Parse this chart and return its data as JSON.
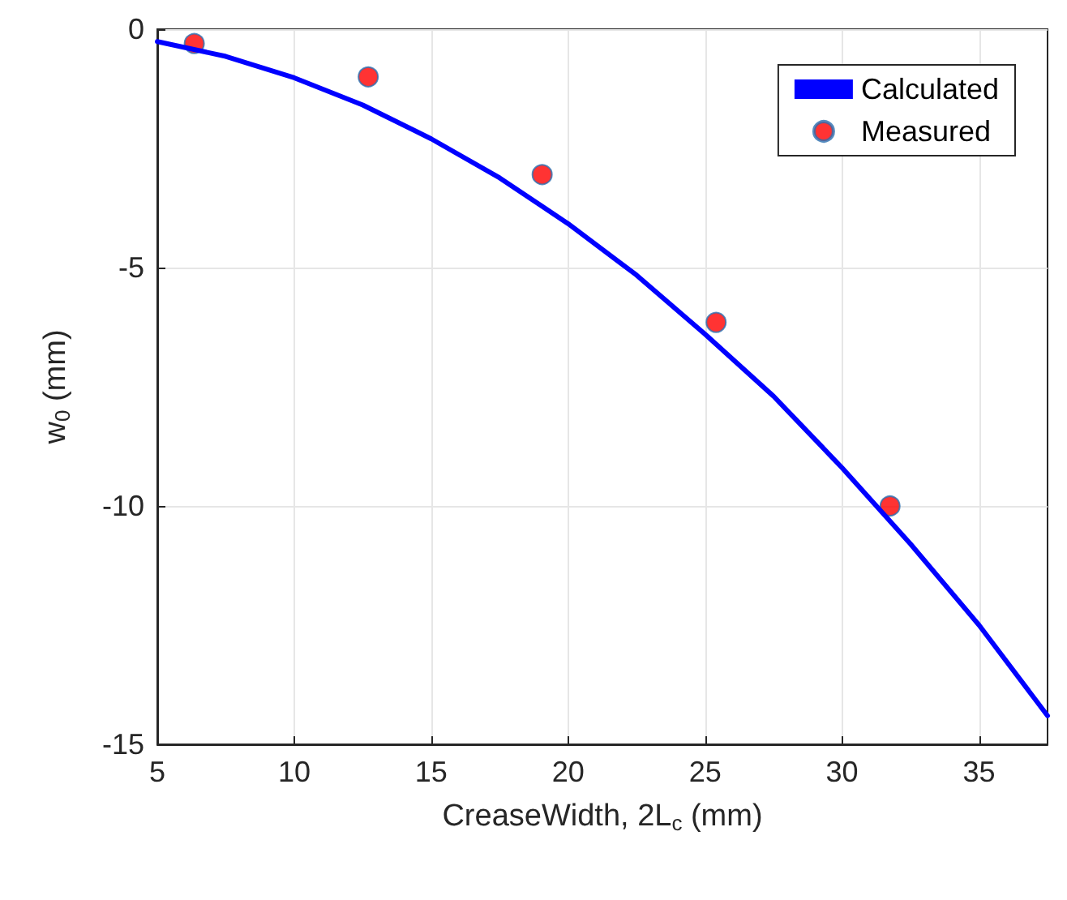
{
  "chart_data": {
    "type": "line",
    "xlabel": "CreaseWidth, 2L$_{c}$ (mm)",
    "ylabel": "w$_{0}$ (mm)",
    "xlim": [
      5,
      37.5
    ],
    "xticks": [
      5,
      10,
      15,
      20,
      25,
      30,
      35
    ],
    "ylim": [
      -15,
      0
    ],
    "yticks": [
      -15,
      -10,
      -5,
      0
    ],
    "grid": true,
    "legend": "top right",
    "series": [
      {
        "name": "Calculated",
        "color": "#0000ff",
        "marker": "none",
        "line_style": "solid",
        "x": [
          5,
          7.5,
          10,
          12.5,
          15,
          17.5,
          20,
          22.5,
          25,
          27.5,
          30,
          32.5,
          35,
          37.5
        ],
        "values": [
          -0.26,
          -0.57,
          -1.02,
          -1.59,
          -2.3,
          -3.12,
          -4.08,
          -5.16,
          -6.4,
          -7.7,
          -9.2,
          -10.8,
          -12.5,
          -14.4
        ]
      },
      {
        "name": "Measured",
        "type": "scatter",
        "color": "#ff0000",
        "marker": "circle",
        "x": [
          6.35,
          12.7,
          19.05,
          25.4,
          31.75
        ],
        "values": [
          -0.3,
          -1.0,
          -3.05,
          -6.15,
          -10.0
        ]
      }
    ]
  }
}
